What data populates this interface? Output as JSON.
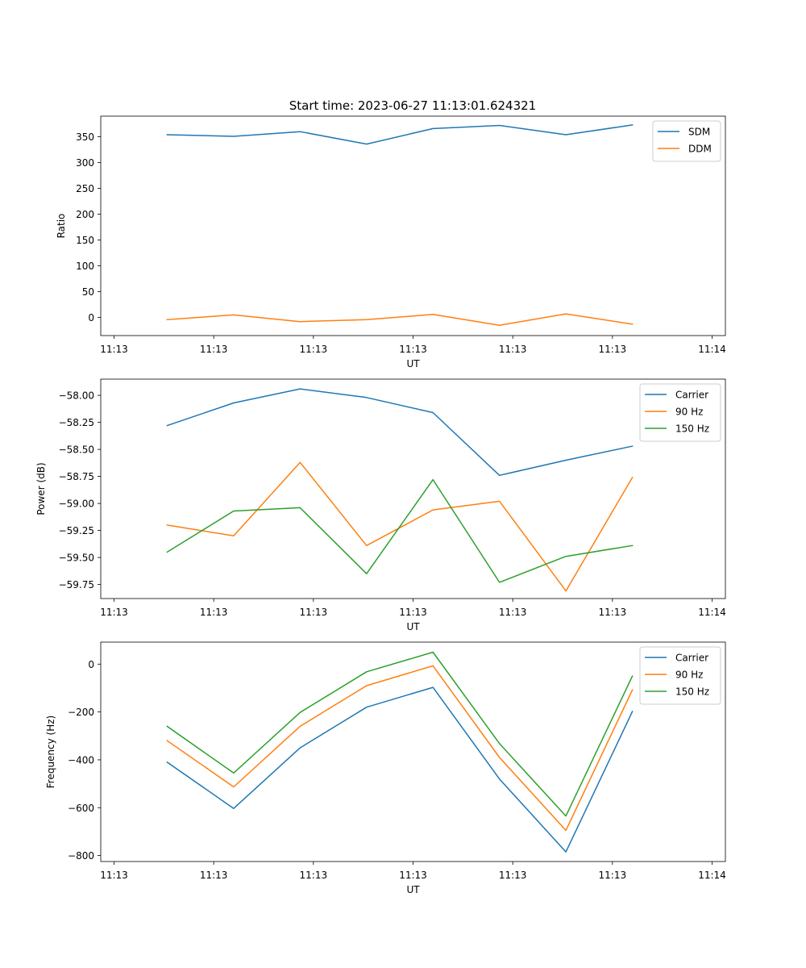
{
  "figure": {
    "title": "Start time: 2023-06-27 11:13:01.624321"
  },
  "chart_data": [
    {
      "type": "line",
      "title": "Start time: 2023-06-27 11:13:01.624321",
      "xlabel": "UT",
      "ylabel": "Ratio",
      "x": [
        1,
        2,
        3,
        4,
        5,
        6,
        7,
        8
      ],
      "x_ticks": [
        0.2,
        1.7,
        3.2,
        4.7,
        6.2,
        7.7,
        9.2
      ],
      "x_tick_labels": [
        "11:13",
        "11:13",
        "11:13",
        "11:13",
        "11:13",
        "11:13",
        "11:14"
      ],
      "xlim": [
        0,
        9.4
      ],
      "ylim": [
        -35,
        390
      ],
      "y_ticks": [
        0,
        50,
        100,
        150,
        200,
        250,
        300,
        350
      ],
      "grid": false,
      "legend": "top-right",
      "series": [
        {
          "name": "SDM",
          "color": "#1f77b4",
          "values": [
            354,
            351,
            360,
            336,
            366,
            372,
            354,
            373
          ]
        },
        {
          "name": "DDM",
          "color": "#ff7f0e",
          "values": [
            -4,
            5,
            -8,
            -4,
            6,
            -15,
            7,
            -13
          ]
        }
      ]
    },
    {
      "type": "line",
      "xlabel": "UT",
      "ylabel": "Power (dB)",
      "x": [
        1,
        2,
        3,
        4,
        5,
        6,
        7,
        8
      ],
      "x_ticks": [
        0.2,
        1.7,
        3.2,
        4.7,
        6.2,
        7.7,
        9.2
      ],
      "x_tick_labels": [
        "11:13",
        "11:13",
        "11:13",
        "11:13",
        "11:13",
        "11:13",
        "11:14"
      ],
      "xlim": [
        0,
        9.4
      ],
      "ylim": [
        -59.88,
        -57.85
      ],
      "y_ticks": [
        -59.75,
        -59.5,
        -59.25,
        -59.0,
        -58.75,
        -58.5,
        -58.25,
        -58.0
      ],
      "y_tick_labels": [
        "−59.75",
        "−59.50",
        "−59.25",
        "−59.00",
        "−58.75",
        "−58.50",
        "−58.25",
        "−58.00"
      ],
      "grid": false,
      "legend": "top-right",
      "series": [
        {
          "name": "Carrier",
          "color": "#1f77b4",
          "values": [
            -58.28,
            -58.07,
            -57.94,
            -58.02,
            -58.16,
            -58.74,
            -58.6,
            -58.47
          ]
        },
        {
          "name": "90 Hz",
          "color": "#ff7f0e",
          "values": [
            -59.2,
            -59.3,
            -58.62,
            -59.39,
            -59.06,
            -58.98,
            -59.81,
            -58.76
          ]
        },
        {
          "name": "150 Hz",
          "color": "#2ca02c",
          "values": [
            -59.45,
            -59.07,
            -59.04,
            -59.65,
            -58.78,
            -59.73,
            -59.49,
            -59.39
          ]
        }
      ]
    },
    {
      "type": "line",
      "xlabel": "UT",
      "ylabel": "Frequency (Hz)",
      "x": [
        1,
        2,
        3,
        4,
        5,
        6,
        7,
        8
      ],
      "x_ticks": [
        0.2,
        1.7,
        3.2,
        4.7,
        6.2,
        7.7,
        9.2
      ],
      "x_tick_labels": [
        "11:13",
        "11:13",
        "11:13",
        "11:13",
        "11:13",
        "11:13",
        "11:14"
      ],
      "xlim": [
        0,
        9.4
      ],
      "ylim": [
        -825,
        92
      ],
      "y_ticks": [
        -800,
        -600,
        -400,
        -200,
        0
      ],
      "y_tick_labels": [
        "−800",
        "−600",
        "−400",
        "−200",
        "0"
      ],
      "grid": false,
      "legend": "top-right",
      "series": [
        {
          "name": "Carrier",
          "color": "#1f77b4",
          "values": [
            -410,
            -603,
            -350,
            -180,
            -97,
            -480,
            -785,
            -198
          ]
        },
        {
          "name": "90 Hz",
          "color": "#ff7f0e",
          "values": [
            -320,
            -513,
            -260,
            -90,
            -7,
            -390,
            -695,
            -108
          ]
        },
        {
          "name": "150 Hz",
          "color": "#2ca02c",
          "values": [
            -260,
            -455,
            -202,
            -32,
            50,
            -332,
            -635,
            -50
          ]
        }
      ]
    }
  ]
}
